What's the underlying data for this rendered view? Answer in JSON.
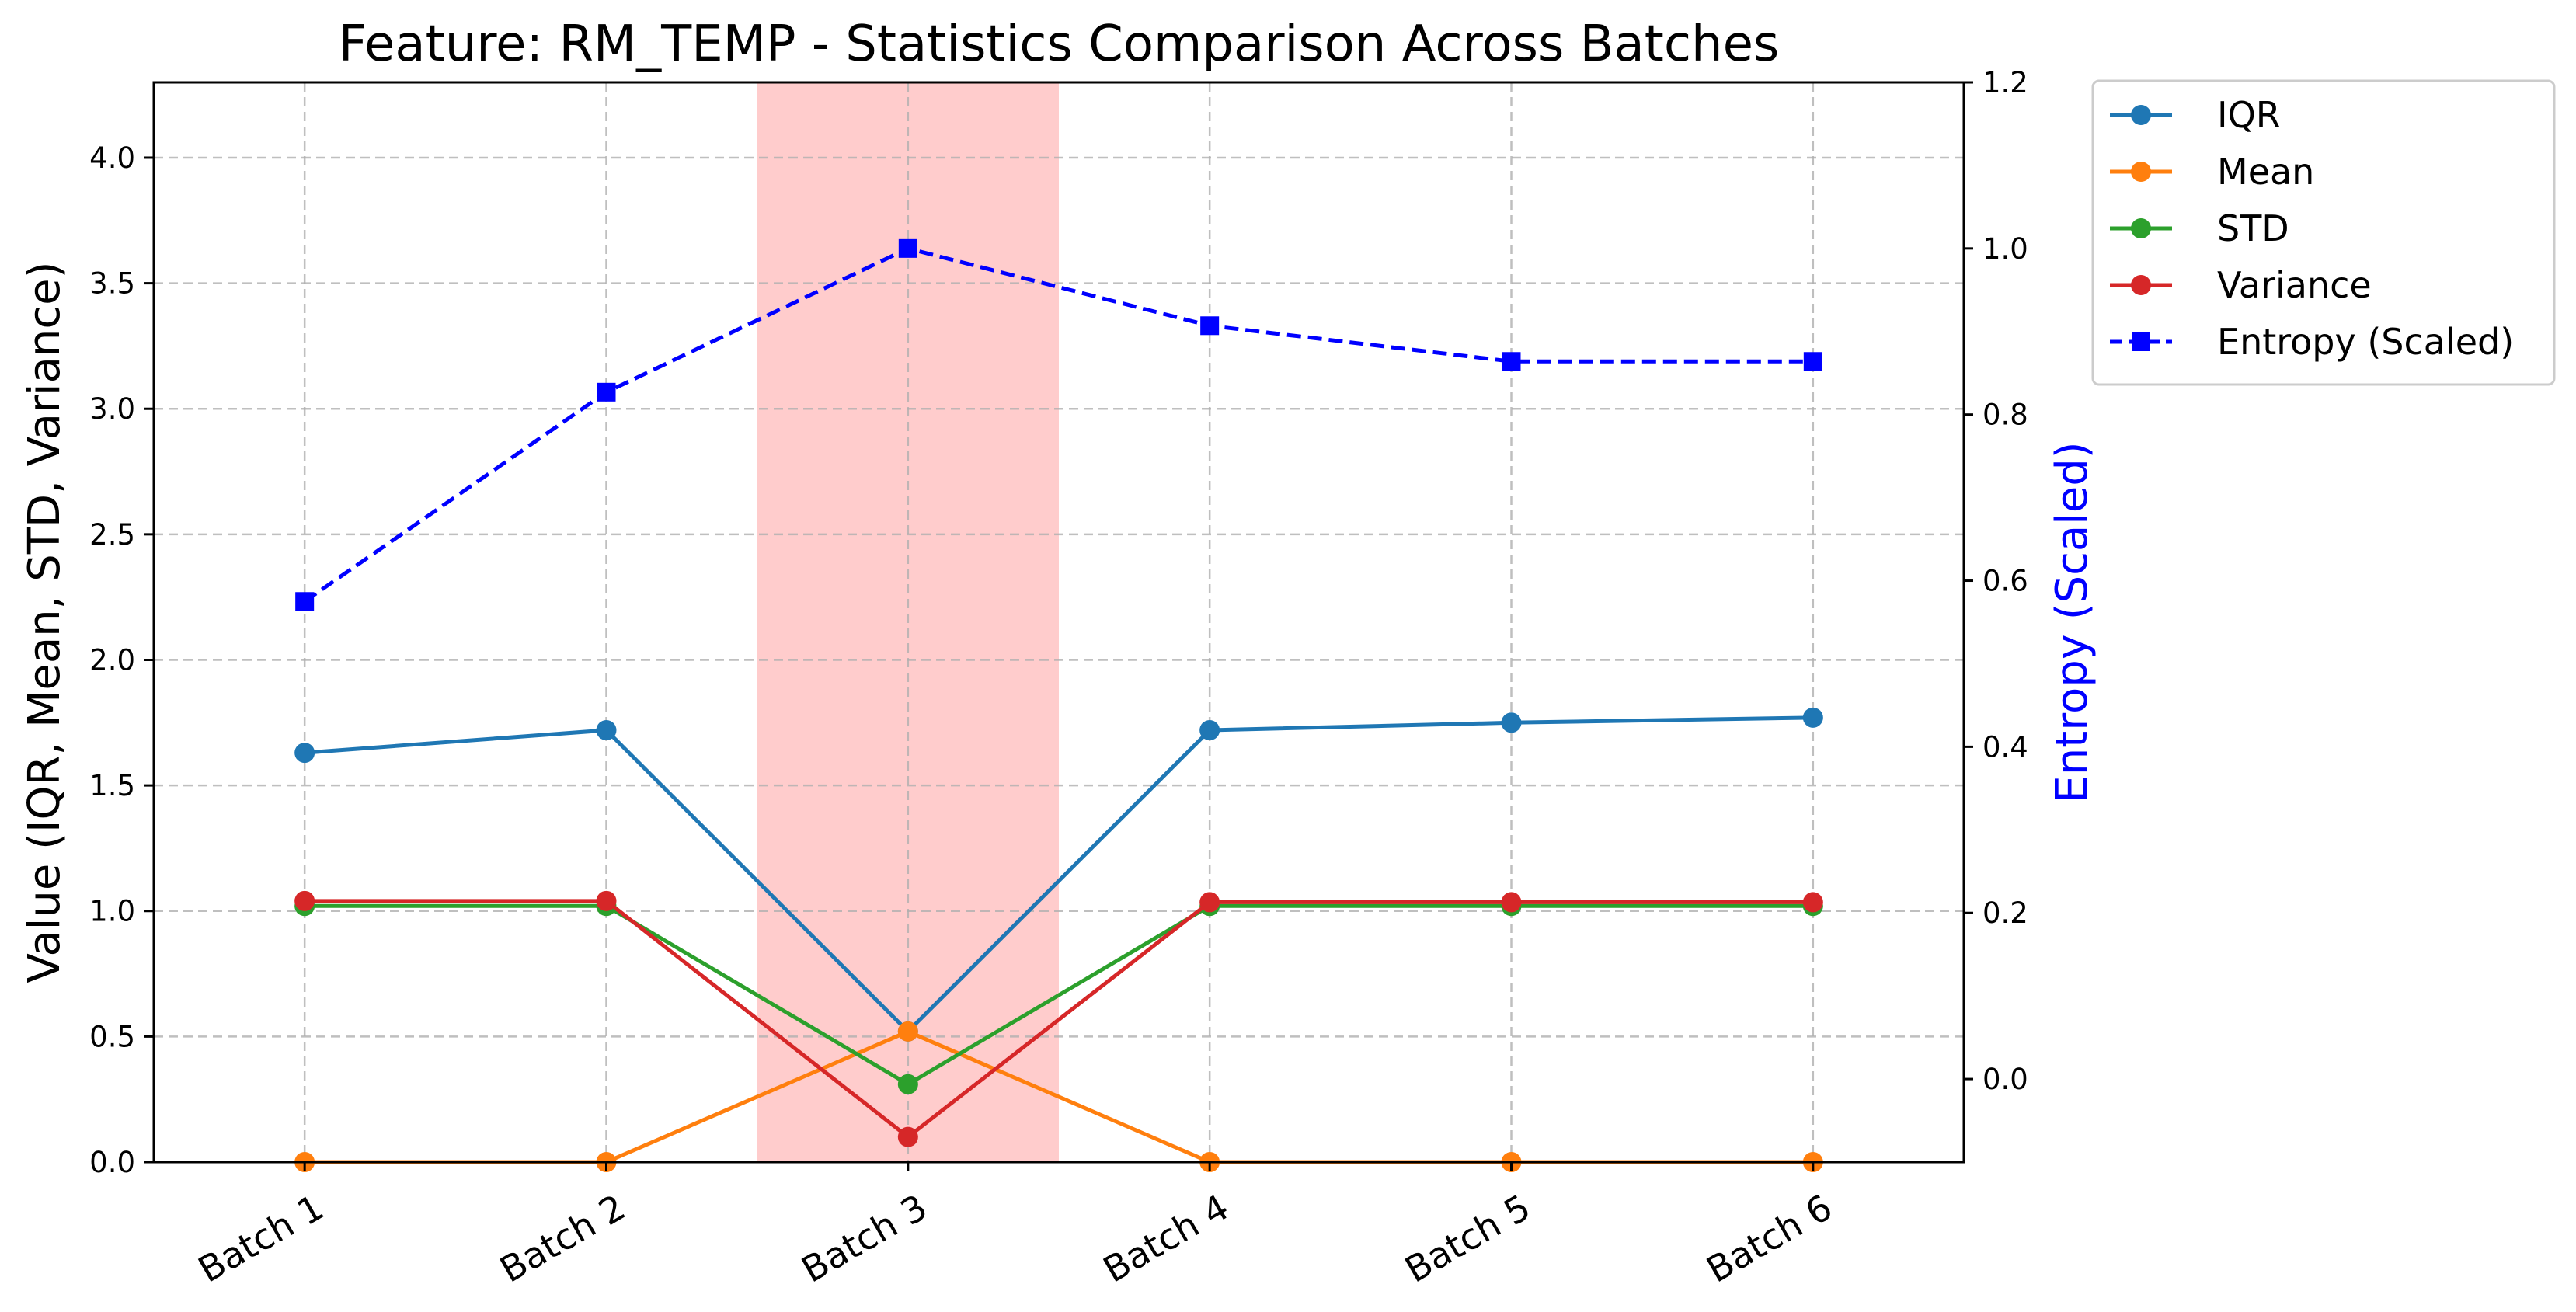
{
  "chart_data": {
    "type": "line",
    "title": "Feature: RM_TEMP - Statistics Comparison Across Batches",
    "xlabel": "",
    "ylabel": "Value (IQR, Mean, STD, Variance)",
    "y2label": "Entropy (Scaled)",
    "categories": [
      "Batch 1",
      "Batch 2",
      "Batch 3",
      "Batch 4",
      "Batch 5",
      "Batch 6"
    ],
    "ylim": [
      0,
      4.3
    ],
    "y2lim": [
      -0.1,
      1.2
    ],
    "yticks": [
      "0.0",
      "0.5",
      "1.0",
      "1.5",
      "2.0",
      "2.5",
      "3.0",
      "3.5",
      "4.0"
    ],
    "y2ticks": [
      "0.0",
      "0.2",
      "0.4",
      "0.6",
      "0.8",
      "1.0",
      "1.2"
    ],
    "grid": true,
    "highlight": {
      "category": "Batch 3",
      "color": "#ffcccc"
    },
    "legend_position": "outside-top-right",
    "series": [
      {
        "name": "IQR",
        "axis": "left",
        "color": "#1f77b4",
        "marker": "circle",
        "dash": "solid",
        "values": [
          1.63,
          1.72,
          0.52,
          1.72,
          1.75,
          1.77
        ]
      },
      {
        "name": "Mean",
        "axis": "left",
        "color": "#ff7f0e",
        "marker": "circle",
        "dash": "solid",
        "values": [
          0.0,
          0.0,
          0.52,
          0.0,
          0.0,
          0.0
        ]
      },
      {
        "name": "STD",
        "axis": "left",
        "color": "#2ca02c",
        "marker": "circle",
        "dash": "solid",
        "values": [
          1.02,
          1.02,
          0.31,
          1.02,
          1.02,
          1.02
        ]
      },
      {
        "name": "Variance",
        "axis": "left",
        "color": "#d62728",
        "marker": "circle",
        "dash": "solid",
        "values": [
          1.04,
          1.04,
          0.1,
          1.035,
          1.035,
          1.035
        ]
      },
      {
        "name": "Entropy (Scaled)",
        "axis": "right",
        "color": "#0000ff",
        "marker": "square",
        "dash": "dashed",
        "values": [
          0.575,
          0.827,
          1.0,
          0.907,
          0.864,
          0.864
        ]
      }
    ]
  }
}
